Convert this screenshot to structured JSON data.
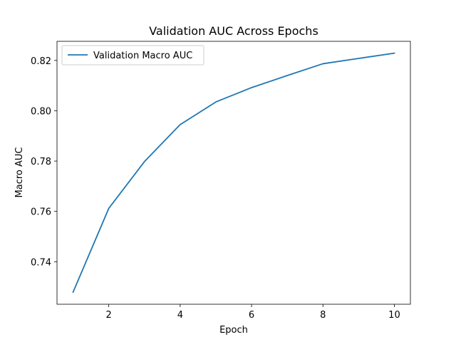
{
  "chart_data": {
    "type": "line",
    "title": "Validation AUC Across Epochs",
    "xlabel": "Epoch",
    "ylabel": "Macro AUC",
    "x": [
      1,
      2,
      3,
      4,
      5,
      6,
      7,
      8,
      9,
      10
    ],
    "series": [
      {
        "name": "Validation Macro AUC",
        "color": "#1f77b4",
        "values": [
          0.7279,
          0.7612,
          0.7798,
          0.7945,
          0.8035,
          0.8092,
          0.814,
          0.8187,
          0.8208,
          0.8229
        ]
      }
    ],
    "xlim": [
      0.55,
      10.45
    ],
    "ylim": [
      0.7231,
      0.8276
    ],
    "xticks": [
      2,
      4,
      6,
      8,
      10
    ],
    "yticks": [
      0.74,
      0.76,
      0.78,
      0.8,
      0.82
    ],
    "ytick_labels": [
      "0.74",
      "0.76",
      "0.78",
      "0.80",
      "0.82"
    ],
    "grid": false,
    "legend_position": "top-left"
  }
}
